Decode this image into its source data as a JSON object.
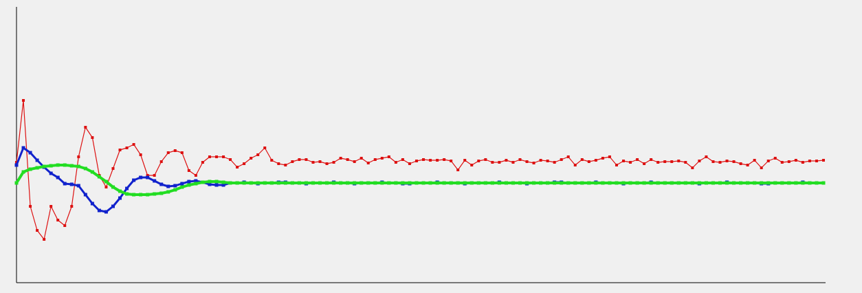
{
  "chart_data": {
    "type": "line",
    "xlim": [
      0,
      117
    ],
    "ylim": [
      0,
      401
    ],
    "series": [
      {
        "color": "#dd1111",
        "marker_size": 4,
        "line_width": 1.2,
        "values": [
          175,
          265,
          111,
          76,
          63,
          111,
          91,
          83,
          111,
          183,
          226,
          211,
          156,
          139,
          166,
          193,
          196,
          201,
          186,
          156,
          156,
          176,
          189,
          192,
          189,
          163,
          156,
          175,
          183,
          183,
          183,
          179,
          168,
          173,
          181,
          186,
          196,
          178,
          173,
          171,
          176,
          179,
          179,
          175,
          176,
          173,
          175,
          181,
          179,
          176,
          181,
          174,
          179,
          181,
          183,
          175,
          179,
          173,
          177,
          179,
          178,
          178,
          179,
          177,
          164,
          178,
          171,
          177,
          179,
          175,
          175,
          178,
          175,
          179,
          176,
          174,
          178,
          177,
          175,
          179,
          183,
          171,
          179,
          176,
          178,
          181,
          183,
          171,
          177,
          175,
          179,
          173,
          179,
          175,
          176,
          176,
          177,
          175,
          167,
          177,
          183,
          176,
          175,
          177,
          176,
          173,
          171,
          178,
          167,
          177,
          181,
          175,
          176,
          178,
          175,
          177,
          177,
          178
        ]
      },
      {
        "color": "#1122cc",
        "marker_size": 5,
        "line_width": 3,
        "values": [
          171,
          196,
          189,
          178,
          168,
          159,
          153,
          144,
          143,
          141,
          128,
          115,
          105,
          103,
          111,
          123,
          137,
          149,
          153,
          153,
          148,
          143,
          140,
          141,
          144,
          147,
          148,
          146,
          143,
          142,
          142,
          145,
          145,
          146,
          145,
          144,
          145,
          145,
          146,
          146,
          145,
          145,
          144,
          145,
          145,
          145,
          146,
          145,
          145,
          144,
          145,
          145,
          145,
          146,
          145,
          145,
          144,
          144,
          145,
          145,
          145,
          146,
          145,
          145,
          145,
          144,
          145,
          145,
          145,
          145,
          146,
          145,
          145,
          145,
          144,
          145,
          145,
          145,
          146,
          146,
          145,
          145,
          145,
          145,
          146,
          145,
          145,
          145,
          144,
          145,
          145,
          145,
          146,
          145,
          145,
          145,
          145,
          145,
          145,
          144,
          145,
          145,
          145,
          146,
          145,
          145,
          145,
          145,
          144,
          144,
          145,
          145,
          145,
          145,
          146,
          145,
          145,
          145
        ]
      },
      {
        "color": "#22dd22",
        "marker_size": 5,
        "line_width": 4,
        "values": [
          145,
          161,
          165,
          167,
          169,
          170,
          171,
          171,
          170,
          169,
          166,
          161,
          154,
          147,
          139,
          133,
          129,
          128,
          128,
          128,
          129,
          130,
          132,
          135,
          139,
          142,
          144,
          146,
          147,
          147,
          146,
          145,
          145,
          145,
          145,
          145,
          145,
          145,
          145,
          145,
          145,
          145,
          145,
          145,
          145,
          145,
          145,
          145,
          145,
          145,
          145,
          145,
          145,
          145,
          145,
          145,
          145,
          145,
          145,
          145,
          145,
          145,
          145,
          145,
          145,
          145,
          145,
          145,
          145,
          145,
          145,
          145,
          145,
          145,
          145,
          145,
          145,
          145,
          145,
          145,
          145,
          145,
          145,
          145,
          145,
          145,
          145,
          145,
          145,
          145,
          145,
          145,
          145,
          145,
          145,
          145,
          145,
          145,
          145,
          145,
          145,
          145,
          145,
          145,
          145,
          145,
          145,
          145,
          145,
          145,
          145,
          145,
          145,
          145,
          145,
          145,
          145,
          145
        ]
      }
    ]
  }
}
